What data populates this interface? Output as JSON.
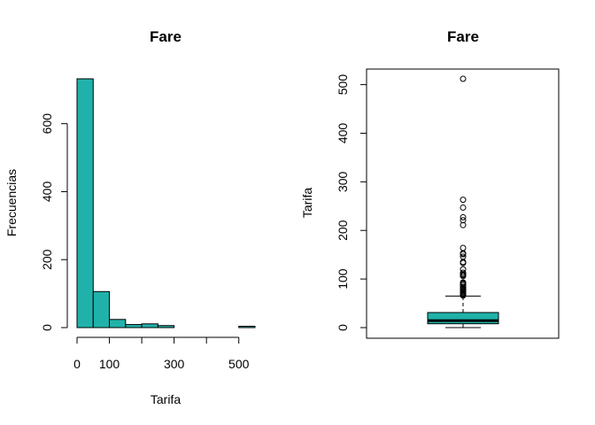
{
  "chart_data": [
    {
      "type": "bar",
      "subtype": "histogram",
      "title": "Fare",
      "xlabel": "Tarifa",
      "ylabel": "Frecuencias",
      "bin_edges": [
        0,
        50,
        100,
        150,
        200,
        250,
        300,
        350,
        400,
        450,
        500,
        550
      ],
      "values": [
        732,
        106,
        24,
        9,
        11,
        6,
        0,
        0,
        0,
        0,
        4
      ],
      "xlim": [
        0,
        550
      ],
      "ylim": [
        0,
        732
      ],
      "xticks": [
        0,
        100,
        200,
        300,
        400,
        500
      ],
      "xtick_labels": [
        "0",
        "100",
        "",
        "300",
        "",
        "500"
      ],
      "yticks": [
        0,
        200,
        400,
        600
      ],
      "bar_color": "#20b2aa",
      "grid": false
    },
    {
      "type": "box",
      "title": "Fare",
      "ylabel": "Tarifa",
      "ylim": [
        0,
        512
      ],
      "yticks": [
        0,
        100,
        200,
        300,
        400,
        500
      ],
      "box": {
        "min": 0,
        "q1": 7.9,
        "median": 14.45,
        "q3": 31,
        "whisker_high": 65
      },
      "outliers": [
        66,
        68,
        69,
        71,
        73,
        75,
        77,
        78,
        79,
        80,
        81,
        83,
        86,
        89,
        90,
        91,
        93,
        106,
        108,
        110,
        113,
        120,
        133,
        135,
        146,
        151,
        153,
        164,
        211,
        221,
        227,
        247,
        263,
        512
      ],
      "box_color": "#20b2aa",
      "grid": false
    }
  ]
}
